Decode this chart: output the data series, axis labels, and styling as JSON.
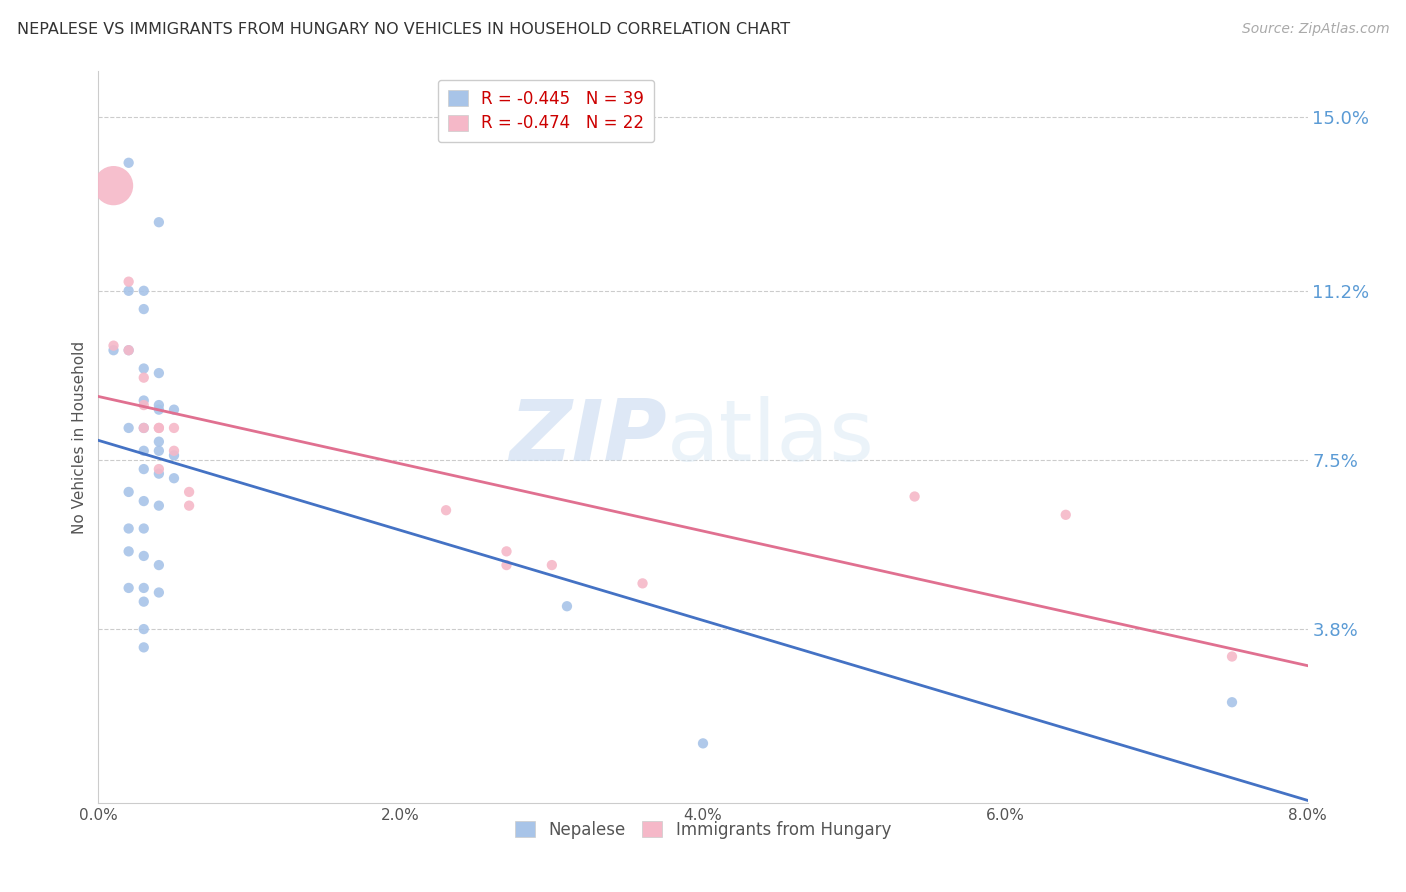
{
  "title": "NEPALESE VS IMMIGRANTS FROM HUNGARY NO VEHICLES IN HOUSEHOLD CORRELATION CHART",
  "source": "Source: ZipAtlas.com",
  "ylabel": "No Vehicles in Household",
  "xlim": [
    0.0,
    0.08
  ],
  "ylim": [
    0.0,
    0.16
  ],
  "xticks": [
    0.0,
    0.01,
    0.02,
    0.03,
    0.04,
    0.05,
    0.06,
    0.07,
    0.08
  ],
  "xticklabels": [
    "0.0%",
    "",
    "2.0%",
    "",
    "4.0%",
    "",
    "6.0%",
    "",
    "8.0%"
  ],
  "ytick_positions": [
    0.038,
    0.075,
    0.112,
    0.15
  ],
  "ytick_labels": [
    "3.8%",
    "7.5%",
    "11.2%",
    "15.0%"
  ],
  "grid_color": "#cccccc",
  "background_color": "#ffffff",
  "blue_color": "#a8c4e8",
  "pink_color": "#f5b8c8",
  "blue_line_color": "#4472c4",
  "pink_line_color": "#e07090",
  "legend_r_blue": "R = -0.445",
  "legend_n_blue": "N = 39",
  "legend_r_pink": "R = -0.474",
  "legend_n_pink": "N = 22",
  "watermark_zip": "ZIP",
  "watermark_atlas": "atlas",
  "nepalese_x": [
    0.002,
    0.004,
    0.002,
    0.003,
    0.003,
    0.001,
    0.002,
    0.003,
    0.004,
    0.003,
    0.004,
    0.004,
    0.005,
    0.002,
    0.003,
    0.004,
    0.003,
    0.004,
    0.005,
    0.003,
    0.004,
    0.005,
    0.002,
    0.003,
    0.004,
    0.002,
    0.003,
    0.002,
    0.003,
    0.004,
    0.002,
    0.003,
    0.004,
    0.003,
    0.031,
    0.003,
    0.003,
    0.075,
    0.04
  ],
  "nepalese_y": [
    0.14,
    0.127,
    0.112,
    0.112,
    0.108,
    0.099,
    0.099,
    0.095,
    0.094,
    0.088,
    0.087,
    0.086,
    0.086,
    0.082,
    0.082,
    0.079,
    0.077,
    0.077,
    0.076,
    0.073,
    0.072,
    0.071,
    0.068,
    0.066,
    0.065,
    0.06,
    0.06,
    0.055,
    0.054,
    0.052,
    0.047,
    0.047,
    0.046,
    0.044,
    0.043,
    0.038,
    0.034,
    0.022,
    0.013
  ],
  "hungary_x": [
    0.001,
    0.002,
    0.001,
    0.002,
    0.003,
    0.003,
    0.003,
    0.004,
    0.004,
    0.005,
    0.005,
    0.004,
    0.006,
    0.006,
    0.023,
    0.027,
    0.027,
    0.03,
    0.036,
    0.054,
    0.064,
    0.075
  ],
  "hungary_y": [
    0.135,
    0.114,
    0.1,
    0.099,
    0.093,
    0.087,
    0.082,
    0.082,
    0.082,
    0.082,
    0.077,
    0.073,
    0.068,
    0.065,
    0.064,
    0.055,
    0.052,
    0.052,
    0.048,
    0.067,
    0.063,
    0.032
  ],
  "hungary_large_idx": 0,
  "nepalese_dot_size": 55,
  "hungary_dot_size": 55,
  "hungary_large_size": 800
}
